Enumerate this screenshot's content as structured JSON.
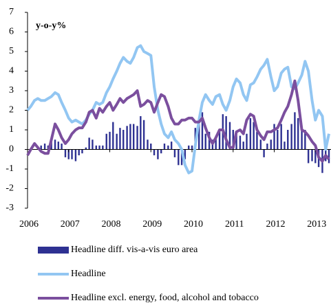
{
  "chart_data": {
    "type": "line",
    "y_label": "y-o-y%",
    "x": [
      2006,
      2006.08,
      2006.17,
      2006.25,
      2006.33,
      2006.42,
      2006.5,
      2006.58,
      2006.67,
      2006.75,
      2006.83,
      2006.92,
      2007,
      2007.08,
      2007.17,
      2007.25,
      2007.33,
      2007.42,
      2007.5,
      2007.58,
      2007.67,
      2007.75,
      2007.83,
      2007.92,
      2008,
      2008.08,
      2008.17,
      2008.25,
      2008.33,
      2008.42,
      2008.5,
      2008.58,
      2008.67,
      2008.75,
      2008.83,
      2008.92,
      2009,
      2009.08,
      2009.17,
      2009.25,
      2009.33,
      2009.42,
      2009.5,
      2009.58,
      2009.67,
      2009.75,
      2009.83,
      2009.92,
      2010,
      2010.08,
      2010.17,
      2010.25,
      2010.33,
      2010.42,
      2010.5,
      2010.58,
      2010.67,
      2010.75,
      2010.83,
      2010.92,
      2011,
      2011.08,
      2011.17,
      2011.25,
      2011.33,
      2011.42,
      2011.5,
      2011.58,
      2011.67,
      2011.75,
      2011.83,
      2011.92,
      2012,
      2012.08,
      2012.17,
      2012.25,
      2012.33,
      2012.42,
      2012.5,
      2012.58,
      2012.67,
      2012.75,
      2012.83,
      2012.92,
      2013,
      2013.08,
      2013.17,
      2013.25,
      2013.33
    ],
    "series": [
      {
        "name": "Headline diff. vis-a-vis euro area",
        "kind": "bar",
        "color": "#2e3192",
        "values": [
          0,
          0,
          0,
          0.1,
          0.2,
          0.3,
          0.2,
          0.5,
          0.5,
          0.4,
          0.3,
          -0.4,
          -0.5,
          -0.5,
          -0.6,
          -0.3,
          -0.2,
          0.1,
          0.6,
          0.5,
          0.2,
          0.2,
          0.2,
          0.8,
          0.9,
          1.4,
          0.8,
          1.1,
          1.0,
          1.2,
          1.3,
          1.3,
          1.2,
          1.7,
          1.5,
          0.5,
          0.3,
          -0.3,
          -0.5,
          -0.2,
          0.3,
          0.2,
          0.4,
          -0.4,
          -0.8,
          -0.8,
          -0.5,
          0.2,
          0.2,
          1.1,
          1.6,
          1.9,
          0.8,
          0.9,
          0.5,
          0.7,
          1.0,
          1.8,
          1.7,
          1.4,
          1.0,
          0.9,
          0.7,
          0.4,
          0.8,
          1.6,
          1.4,
          0.9,
          0.5,
          -0.4,
          0.3,
          0.5,
          1.3,
          1.0,
          1.3,
          0.4,
          1.0,
          1.3,
          1.9,
          1.6,
          1.0,
          1.0,
          -0.7,
          -0.6,
          -0.7,
          -0.9,
          -1.2,
          -0.6,
          -0.7
        ]
      },
      {
        "name": "Headline",
        "kind": "line",
        "color": "#92c6f2",
        "values": [
          2.0,
          2.2,
          2.5,
          2.6,
          2.5,
          2.5,
          2.6,
          2.7,
          2.9,
          2.8,
          2.4,
          2.0,
          1.6,
          1.4,
          1.5,
          1.4,
          1.3,
          1.5,
          1.8,
          2.0,
          2.4,
          2.3,
          2.4,
          2.9,
          3.2,
          3.6,
          4.0,
          4.4,
          4.7,
          4.5,
          4.4,
          4.7,
          5.2,
          5.3,
          5.0,
          4.9,
          4.8,
          3.2,
          2.0,
          1.3,
          0.8,
          0.6,
          0.9,
          0.5,
          0.3,
          0.0,
          -0.8,
          -1.2,
          -1.1,
          0.2,
          1.5,
          2.4,
          2.8,
          2.5,
          2.3,
          2.7,
          2.8,
          2.3,
          2.0,
          2.5,
          3.2,
          3.6,
          3.4,
          2.8,
          2.5,
          3.3,
          3.4,
          3.7,
          4.1,
          4.3,
          4.6,
          3.7,
          3.0,
          3.2,
          3.9,
          4.1,
          4.2,
          3.2,
          3.1,
          3.4,
          3.8,
          4.5,
          4.0,
          2.5,
          1.5,
          2.0,
          1.7,
          0.0,
          0.8
        ]
      },
      {
        "name": "Headline excl. energy, food, alcohol and tobacco",
        "kind": "line",
        "color": "#7b4f9e",
        "values": [
          -0.3,
          0.0,
          0.3,
          0.1,
          -0.1,
          -0.2,
          -0.2,
          0.5,
          1.3,
          1.0,
          0.6,
          0.3,
          0.5,
          0.8,
          1.0,
          1.1,
          1.1,
          1.4,
          1.9,
          2.0,
          1.6,
          2.1,
          1.9,
          2.2,
          2.4,
          2.0,
          2.3,
          2.6,
          2.4,
          2.6,
          2.7,
          2.8,
          3.0,
          2.2,
          2.3,
          2.5,
          2.4,
          1.9,
          2.4,
          2.8,
          2.7,
          2.2,
          1.6,
          1.3,
          1.3,
          1.5,
          1.5,
          1.6,
          1.6,
          1.4,
          1.4,
          1.6,
          1.1,
          0.6,
          0.3,
          0.6,
          1.0,
          1.0,
          0.5,
          0.1,
          0.1,
          0.9,
          1.0,
          0.8,
          1.5,
          1.8,
          1.7,
          1.0,
          0.7,
          0.5,
          0.9,
          0.9,
          1.0,
          1.1,
          1.5,
          1.9,
          2.2,
          2.8,
          3.5,
          2.5,
          1.0,
          0.9,
          0.7,
          0.4,
          0.2,
          -0.4,
          -0.6,
          -0.3,
          -0.5
        ]
      }
    ],
    "xlim": [
      2006,
      2013.38
    ],
    "xticks": [
      2006,
      2007,
      2008,
      2009,
      2010,
      2011,
      2012,
      2013
    ],
    "ylim": [
      -3,
      7
    ],
    "yticks": [
      -3,
      -2,
      -1,
      0,
      1,
      2,
      3,
      4,
      5,
      6,
      7
    ],
    "grid": false,
    "legend": "bottom"
  }
}
